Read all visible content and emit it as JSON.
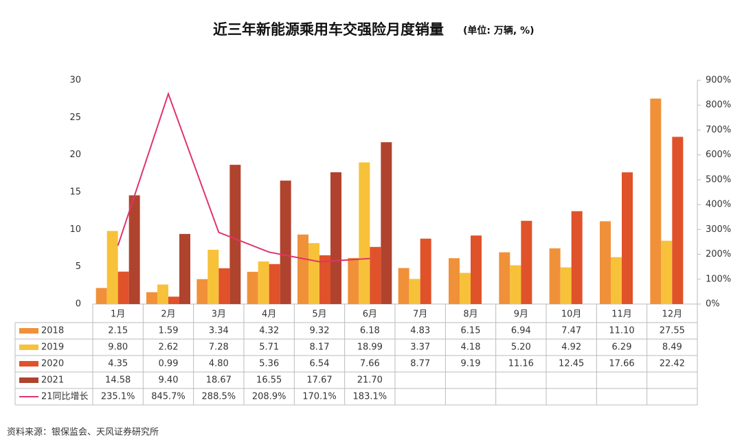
{
  "chart_data": {
    "type": "bar",
    "title": "近三年新能源乘用车交强险月度销量",
    "subtitle": "(单位: 万辆, %)",
    "categories": [
      "1月",
      "2月",
      "3月",
      "4月",
      "5月",
      "6月",
      "7月",
      "8月",
      "9月",
      "10月",
      "11月",
      "12月"
    ],
    "series": [
      {
        "name": "2018",
        "color": "#f0913a",
        "values": [
          2.15,
          1.59,
          3.34,
          4.32,
          9.32,
          6.18,
          4.83,
          6.15,
          6.94,
          7.47,
          11.1,
          27.55
        ],
        "value_labels": [
          "2.15",
          "1.59",
          "3.34",
          "4.32",
          "9.32",
          "6.18",
          "4.83",
          "6.15",
          "6.94",
          "7.47",
          "11.10",
          "27.55"
        ]
      },
      {
        "name": "2019",
        "color": "#f7c23a",
        "values": [
          9.8,
          2.62,
          7.28,
          5.71,
          8.17,
          18.99,
          3.37,
          4.18,
          5.2,
          4.92,
          6.29,
          8.49
        ],
        "value_labels": [
          "9.80",
          "2.62",
          "7.28",
          "5.71",
          "8.17",
          "18.99",
          "3.37",
          "4.18",
          "5.20",
          "4.92",
          "6.29",
          "8.49"
        ]
      },
      {
        "name": "2020",
        "color": "#e0522a",
        "values": [
          4.35,
          0.99,
          4.8,
          5.36,
          6.54,
          7.66,
          8.77,
          9.19,
          11.16,
          12.45,
          17.66,
          22.42
        ],
        "value_labels": [
          "4.35",
          "0.99",
          "4.80",
          "5.36",
          "6.54",
          "7.66",
          "8.77",
          "9.19",
          "11.16",
          "12.45",
          "17.66",
          "22.42"
        ]
      },
      {
        "name": "2021",
        "color": "#b0432e",
        "values": [
          14.58,
          9.4,
          18.67,
          16.55,
          17.67,
          21.7,
          null,
          null,
          null,
          null,
          null,
          null
        ],
        "value_labels": [
          "14.58",
          "9.40",
          "18.67",
          "16.55",
          "17.67",
          "21.70",
          null,
          null,
          null,
          null,
          null,
          null
        ]
      },
      {
        "name": "21同比增长",
        "color": "#e0336b",
        "type": "line",
        "axis": "y2",
        "values": [
          235.1,
          845.7,
          288.5,
          208.9,
          170.1,
          183.1,
          null,
          null,
          null,
          null,
          null,
          null
        ],
        "value_labels": [
          "235.1%",
          "845.7%",
          "288.5%",
          "208.9%",
          "170.1%",
          "183.1%",
          null,
          null,
          null,
          null,
          null,
          null
        ]
      }
    ],
    "ylim": [
      0,
      30
    ],
    "yticks": [
      0,
      5,
      10,
      15,
      20,
      25,
      30
    ],
    "y2lim": [
      0,
      900
    ],
    "y2ticks": [
      {
        "value": 0,
        "label": "0%"
      },
      {
        "value": 100,
        "label": "100%"
      },
      {
        "value": 200,
        "label": "200%"
      },
      {
        "value": 300,
        "label": "300%"
      },
      {
        "value": 400,
        "label": "400%"
      },
      {
        "value": 500,
        "label": "500%"
      },
      {
        "value": 600,
        "label": "600%"
      },
      {
        "value": 700,
        "label": "700%"
      },
      {
        "value": 800,
        "label": "800%"
      },
      {
        "value": 900,
        "label": "900%"
      }
    ],
    "grid": false,
    "source": "资料来源：银保监会、天风证券研究所"
  }
}
